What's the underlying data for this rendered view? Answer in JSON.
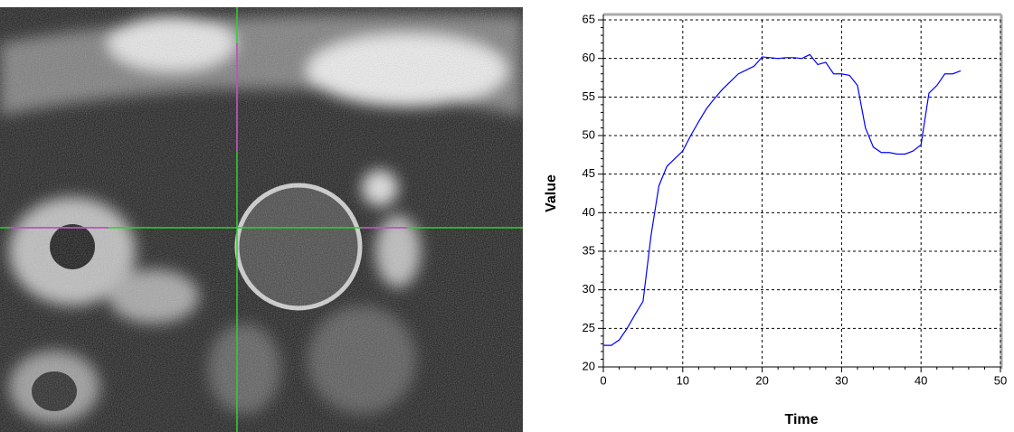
{
  "chart_data": {
    "type": "line",
    "x_label": "Time",
    "y_label": "Value",
    "x": [
      0,
      1,
      2,
      3,
      4,
      5,
      6,
      7,
      8,
      9,
      10,
      11,
      12,
      13,
      14,
      15,
      16,
      17,
      18,
      19,
      20,
      21,
      22,
      23,
      24,
      25,
      26,
      27,
      28,
      29,
      30,
      31,
      32,
      33,
      34,
      35,
      36,
      37,
      38,
      39,
      40,
      41,
      42,
      43,
      44,
      45
    ],
    "series": [
      {
        "color": "#0000ff",
        "values": [
          22.8,
          22.8,
          23.5,
          25,
          26.8,
          28.5,
          37,
          43.5,
          46,
          47,
          48,
          50,
          51.8,
          53.5,
          54.8,
          56,
          57,
          58,
          58.5,
          59,
          60.2,
          60.1,
          60,
          60.1,
          60.1,
          60,
          60.5,
          59.2,
          59.5,
          58,
          58,
          57.8,
          56.5,
          51,
          48.5,
          47.8,
          47.8,
          47.6,
          47.6,
          48,
          48.8,
          55.5,
          56.5,
          58,
          58,
          58.4
        ]
      }
    ],
    "xlim": [
      0,
      50
    ],
    "ylim": [
      20,
      65
    ],
    "xticks": [
      0,
      10,
      20,
      30,
      40,
      50
    ],
    "yticks": [
      20,
      25,
      30,
      35,
      40,
      45,
      50,
      55,
      60,
      65
    ],
    "grid": true
  }
}
